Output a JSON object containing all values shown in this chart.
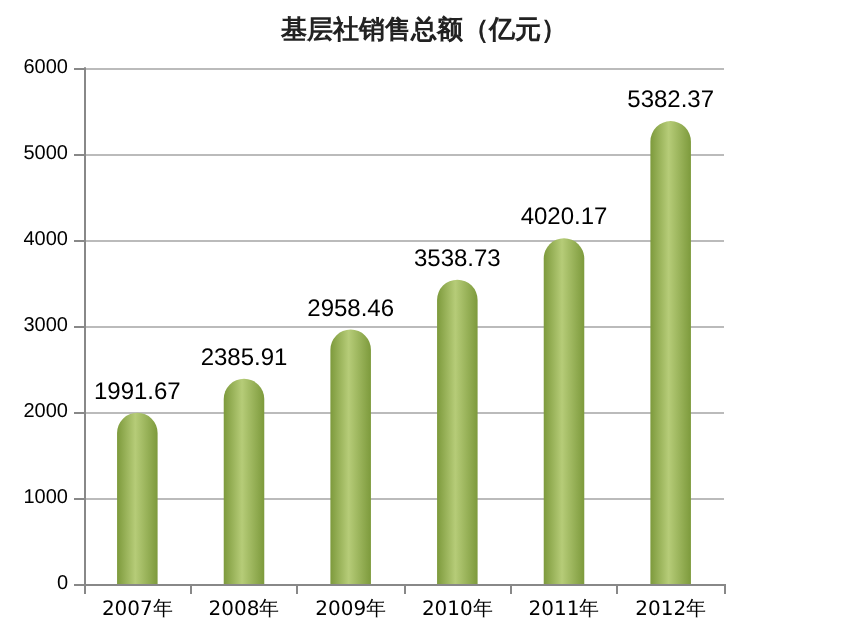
{
  "chart_data": {
    "type": "bar",
    "title": "基层社销售总额（亿元）",
    "categories": [
      "2007年",
      "2008年",
      "2009年",
      "2010年",
      "2011年",
      "2012年"
    ],
    "values": [
      1991.67,
      2385.91,
      2958.46,
      3538.73,
      4020.17,
      5382.37
    ],
    "color": "#7d9a3c",
    "ylim": [
      0,
      6000
    ],
    "yticks": [
      0,
      1000,
      2000,
      3000,
      4000,
      5000,
      6000
    ],
    "grid": "y",
    "data_labels": true
  }
}
